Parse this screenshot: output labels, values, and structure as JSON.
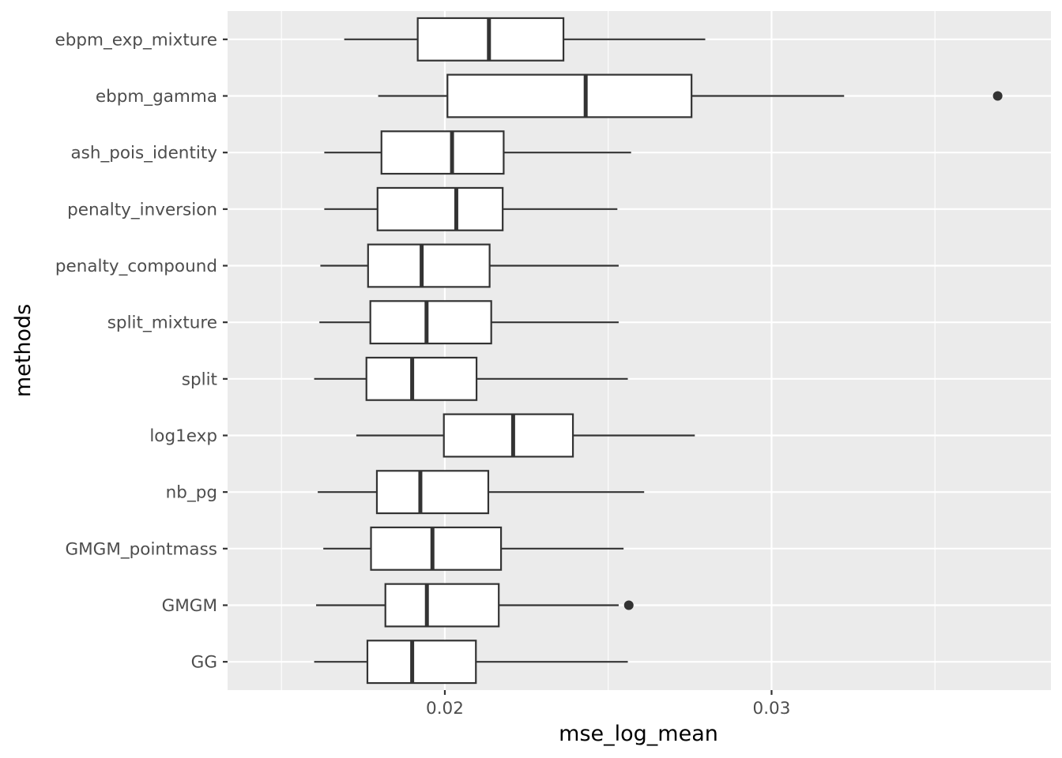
{
  "chart_data": {
    "type": "boxplot",
    "orientation": "horizontal",
    "title": "",
    "xlabel": "mse_log_mean",
    "ylabel": "methods",
    "xlim": [
      0.01335,
      0.03855
    ],
    "x_major_ticks": [
      0.02,
      0.03
    ],
    "x_tick_labels": [
      "0.02",
      "0.03"
    ],
    "x_minor_ticks": [
      0.015,
      0.025,
      0.035
    ],
    "grid": true,
    "colors": {
      "panel": "#EBEBEB",
      "grid": "#FFFFFF",
      "box_fill": "#FFFFFF",
      "box_stroke": "#333333"
    },
    "categories": [
      "ebpm_exp_mixture",
      "ebpm_gamma",
      "ash_pois_identity",
      "penalty_inversion",
      "penalty_compound",
      "split_mixture",
      "split",
      "log1exp",
      "nb_pg",
      "GMGM_pointmass",
      "GMGM",
      "GG"
    ],
    "boxes": [
      {
        "label": "ebpm_exp_mixture",
        "whisker_low": 0.01692,
        "q1": 0.01917,
        "median": 0.02135,
        "q3": 0.02363,
        "whisker_high": 0.02797,
        "outliers": []
      },
      {
        "label": "ebpm_gamma",
        "whisker_low": 0.01796,
        "q1": 0.02008,
        "median": 0.02431,
        "q3": 0.02755,
        "whisker_high": 0.03222,
        "outliers": [
          0.03692
        ]
      },
      {
        "label": "ash_pois_identity",
        "whisker_low": 0.01631,
        "q1": 0.01806,
        "median": 0.02022,
        "q3": 0.0218,
        "whisker_high": 0.0257,
        "outliers": []
      },
      {
        "label": "penalty_inversion",
        "whisker_low": 0.01631,
        "q1": 0.01794,
        "median": 0.02035,
        "q3": 0.02177,
        "whisker_high": 0.02528,
        "outliers": []
      },
      {
        "label": "penalty_compound",
        "whisker_low": 0.01619,
        "q1": 0.01765,
        "median": 0.01929,
        "q3": 0.02137,
        "whisker_high": 0.02532,
        "outliers": []
      },
      {
        "label": "split_mixture",
        "whisker_low": 0.01616,
        "q1": 0.01772,
        "median": 0.01944,
        "q3": 0.02142,
        "whisker_high": 0.02532,
        "outliers": []
      },
      {
        "label": "split",
        "whisker_low": 0.016,
        "q1": 0.0176,
        "median": 0.019,
        "q3": 0.02097,
        "whisker_high": 0.0256,
        "outliers": []
      },
      {
        "label": "log1exp",
        "whisker_low": 0.01729,
        "q1": 0.01997,
        "median": 0.02209,
        "q3": 0.02392,
        "whisker_high": 0.02765,
        "outliers": []
      },
      {
        "label": "nb_pg",
        "whisker_low": 0.01611,
        "q1": 0.01792,
        "median": 0.01925,
        "q3": 0.02133,
        "whisker_high": 0.0261,
        "outliers": []
      },
      {
        "label": "GMGM_pointmass",
        "whisker_low": 0.01628,
        "q1": 0.01774,
        "median": 0.01962,
        "q3": 0.02172,
        "whisker_high": 0.02547,
        "outliers": []
      },
      {
        "label": "GMGM",
        "whisker_low": 0.01606,
        "q1": 0.01818,
        "median": 0.01945,
        "q3": 0.02165,
        "whisker_high": 0.02532,
        "outliers": [
          0.02563
        ]
      },
      {
        "label": "GG",
        "whisker_low": 0.016,
        "q1": 0.01763,
        "median": 0.019,
        "q3": 0.02095,
        "whisker_high": 0.0256,
        "outliers": []
      }
    ]
  }
}
